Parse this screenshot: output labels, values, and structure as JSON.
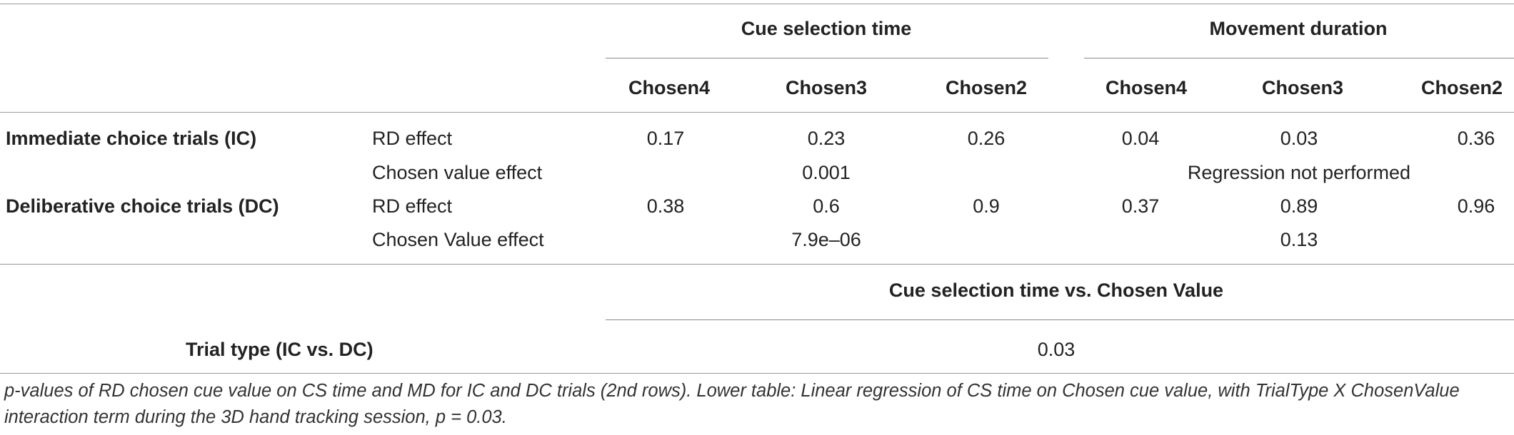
{
  "header": {
    "group1": "Cue selection time",
    "group2": "Movement duration",
    "columns": [
      "Chosen4",
      "Chosen3",
      "Chosen2",
      "Chosen4",
      "Chosen3",
      "Chosen2"
    ]
  },
  "rows": [
    {
      "label": "Immediate choice trials (IC)",
      "effect": "RD effect",
      "values": [
        "0.17",
        "0.23",
        "0.26",
        "0.04",
        "0.03",
        "0.36"
      ],
      "second_effect": "Chosen value effect",
      "second_cs": "0.001",
      "second_md": "Regression not performed"
    },
    {
      "label": "Deliberative choice trials (DC)",
      "effect": "RD effect",
      "values": [
        "0.38",
        "0.6",
        "0.9",
        "0.37",
        "0.89",
        "0.96"
      ],
      "second_effect": "Chosen Value effect",
      "second_cs": "7.9e–06",
      "second_md": "0.13"
    }
  ],
  "lower": {
    "header": "Cue selection time vs. Chosen Value",
    "label": "Trial type (IC vs. DC)",
    "value": "0.03"
  },
  "caption": "p-values of RD chosen cue value on CS time and MD for IC and DC trials (2nd rows). Lower table: Linear regression of CS time on Chosen cue value, with TrialType X ChosenValue interaction term during the 3D hand tracking session, p = 0.03."
}
